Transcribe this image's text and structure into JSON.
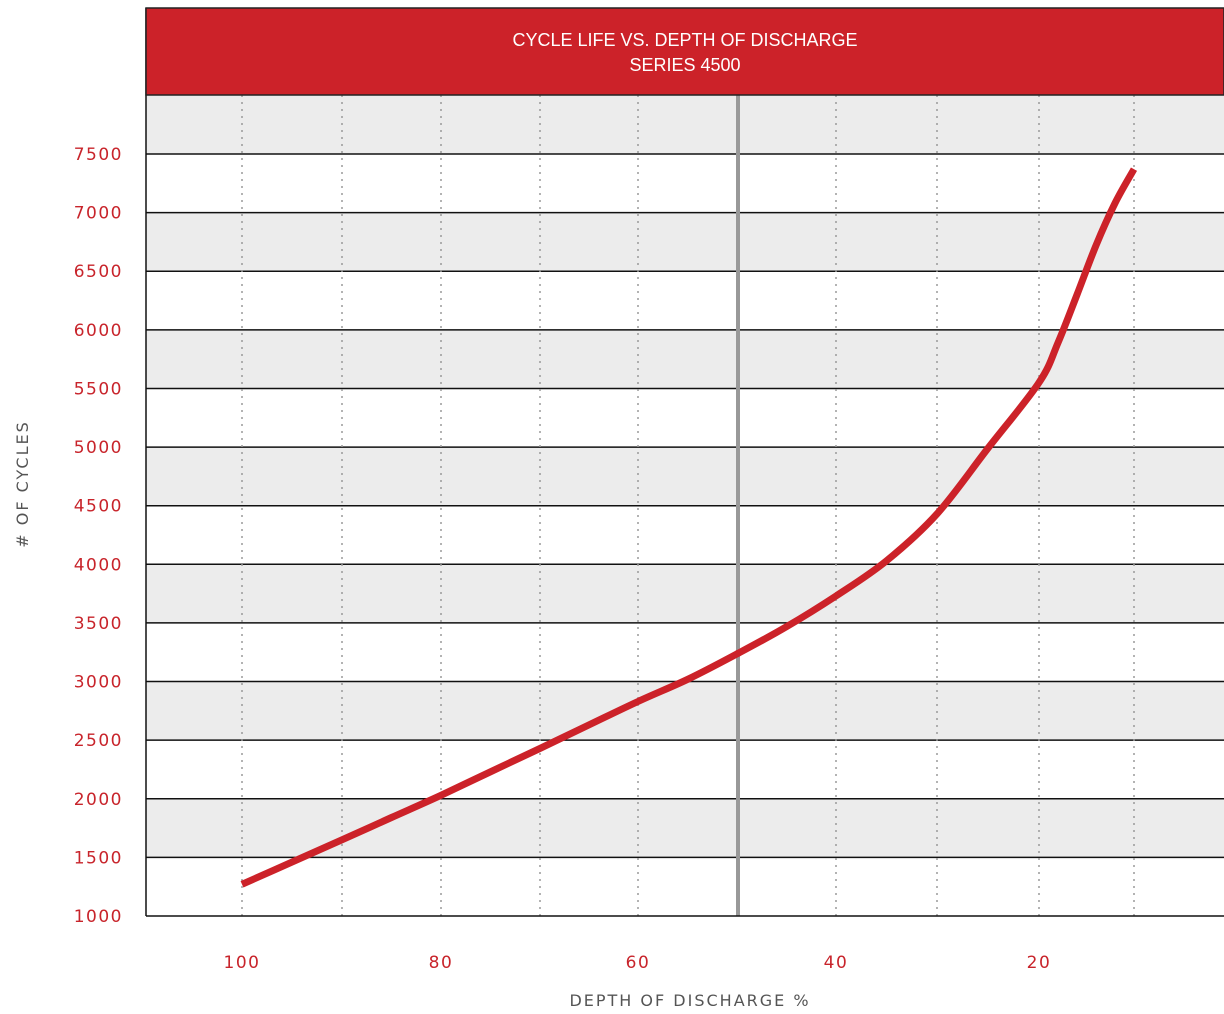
{
  "chart_data": {
    "type": "line",
    "title": "CYCLE LIFE VS. DEPTH OF DISCHARGE",
    "subtitle": "SERIES 4500",
    "xlabel": "DEPTH OF DISCHARGE %",
    "ylabel": "# OF CYCLES",
    "x_ticks": [
      "100",
      "80",
      "60",
      "40",
      "20"
    ],
    "y_ticks": [
      "7500",
      "7000",
      "6500",
      "6000",
      "5500",
      "5000",
      "4500",
      "4000",
      "3500",
      "3000",
      "2500",
      "2000",
      "1500",
      "1000"
    ],
    "xlim": [
      110,
      0
    ],
    "ylim": [
      1000,
      7700
    ],
    "x_grid_dotted": [
      100,
      90,
      80,
      70,
      60,
      40,
      30,
      20,
      10
    ],
    "x_reference_line": 50,
    "grid": true,
    "legend": "none",
    "series": [
      {
        "x": [
          100,
          95,
          90,
          85,
          80,
          75,
          70,
          65,
          60,
          55,
          50,
          45,
          40,
          35,
          30,
          25,
          20,
          18,
          16,
          14,
          12,
          10
        ],
        "values": [
          1270,
          1460,
          1650,
          1840,
          2030,
          2230,
          2430,
          2630,
          2830,
          3020,
          3240,
          3470,
          3730,
          4030,
          4430,
          4990,
          5550,
          5890,
          6300,
          6720,
          7080,
          7370
        ]
      }
    ],
    "colors": {
      "header": "#cc2229",
      "line": "#cc2229",
      "tick_label": "#c8242b",
      "band_gray": "#ececec",
      "band_white": "#ffffff",
      "gridline": "#111111",
      "dotted_grid": "#9a9a9a",
      "reference_line": "#999999"
    }
  }
}
